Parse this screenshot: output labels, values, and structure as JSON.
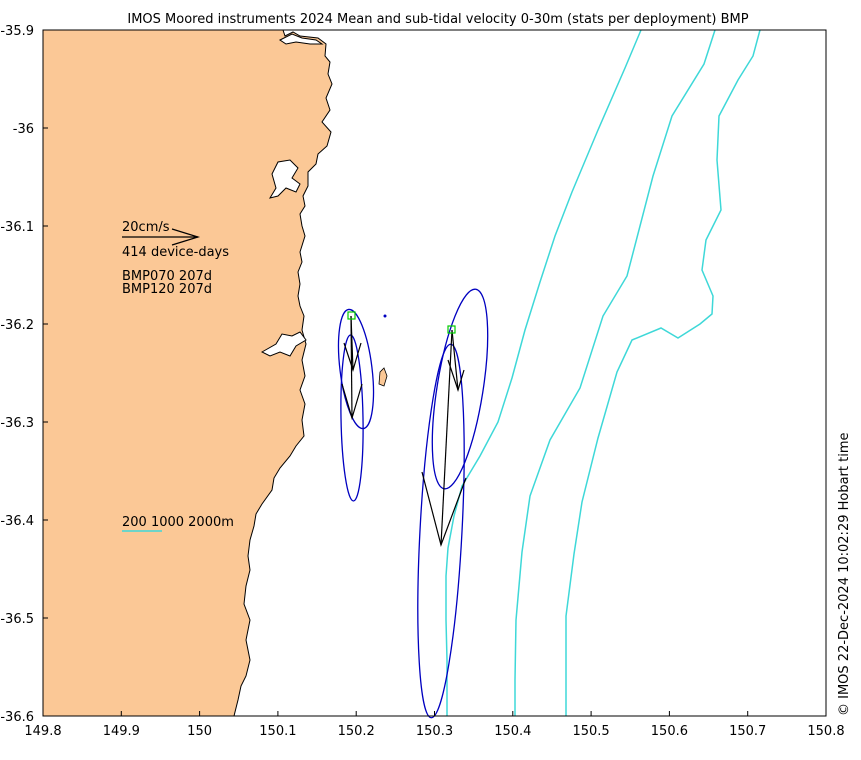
{
  "title": "IMOS Moored instruments 2024 Mean and sub-tidal velocity 0-30m (stats per deployment) BMP",
  "footer": "© IMOS 22-Dec-2024 10:02:29 Hobart time",
  "axes": {
    "x_ticks": [
      "149.8",
      "149.9",
      "150",
      "150.1",
      "150.2",
      "150.3",
      "150.4",
      "150.5",
      "150.6",
      "150.7",
      "150.8"
    ],
    "y_ticks": [
      "-35.9",
      "-36",
      "-36.1",
      "-36.2",
      "-36.3",
      "-36.4",
      "-36.5",
      "-36.6"
    ]
  },
  "legend": {
    "scale_label": "20cm/s",
    "days_label": "414 device-days",
    "deployments": [
      "BMP070 207d",
      "BMP120 207d"
    ],
    "isobaths_label": "200 1000 2000m"
  },
  "colors": {
    "land": "#fbc896",
    "isobath": "#3ed8d8",
    "ellipse": "#0000c0",
    "arrow": "#000000",
    "mooring": "#00cc00"
  },
  "chart_data": {
    "type": "map",
    "xlim": [
      149.8,
      150.8
    ],
    "ylim": [
      -36.6,
      -35.9
    ],
    "moorings": [
      {
        "name": "BMP070",
        "lon": 150.19,
        "lat": -36.195
      },
      {
        "name": "BMP120",
        "lon": 150.315,
        "lat": -36.203
      }
    ]
  }
}
